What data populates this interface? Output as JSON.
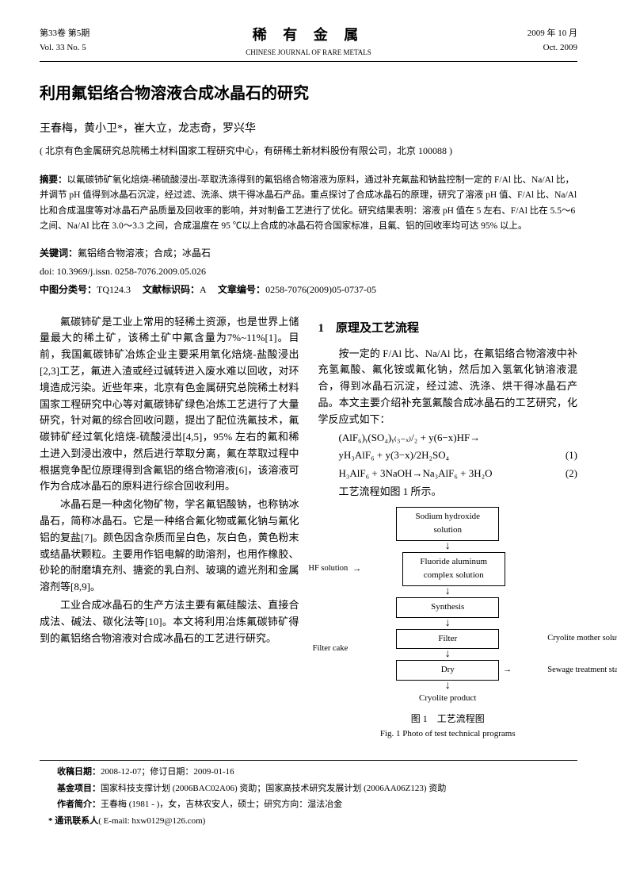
{
  "header": {
    "volume_cn": "第33卷 第5期",
    "volume_en": "Vol. 33  No. 5",
    "journal_cn": "稀 有 金 属",
    "journal_en": "CHINESE JOURNAL OF RARE METALS",
    "date_cn": "2009 年 10 月",
    "date_en": "Oct. 2009"
  },
  "title": "利用氟铝络合物溶液合成冰晶石的研究",
  "authors": "王春梅，黄小卫*，崔大立，龙志奇，罗兴华",
  "affiliation": "( 北京有色金属研究总院稀土材料国家工程研究中心，有研稀土新材料股份有限公司，北京 100088 )",
  "abstract_label": "摘要：",
  "abstract": "以氟碳铈矿氧化焙烧-稀硫酸浸出-萃取洗涤得到的氟铝络合物溶液为原料，通过补充氟盐和钠盐控制一定的 F/Al 比、Na/Al 比，并调节 pH 值得到冰晶石沉淀，经过滤、洗涤、烘干得冰晶石产品。重点探讨了合成冰晶石的原理，研究了溶液 pH 值、F/Al 比、Na/Al 比和合成温度等对冰晶石产品质量及回收率的影响，并对制备工艺进行了优化。研究结果表明：溶液 pH 值在 5 左右、F/Al 比在 5.5～6 之间、Na/Al 比在 3.0～3.3 之间，合成温度在 95 ℃以上合成的冰晶石符合国家标准，且氟、铝的回收率均可达 95% 以上。",
  "keywords_label": "关键词：",
  "keywords": "氟铝络合物溶液；合成；冰晶石",
  "doi": "doi: 10.3969/j.issn. 0258-7076.2009.05.026",
  "class": {
    "clc_label": "中图分类号：",
    "clc": "TQ124.3",
    "doc_label": "文献标识码：",
    "doc": "A",
    "art_label": "文章编号：",
    "art": "0258-7076(2009)05-0737-05"
  },
  "body": {
    "p1": "氟碳铈矿是工业上常用的轻稀土资源，也是世界上储量最大的稀土矿，该稀土矿中氟含量为7%~11%[1]。目前，我国氟碳铈矿冶炼企业主要采用氧化焙烧-盐酸浸出[2,3]工艺，氟进入渣或经过碱转进入废水难以回收，对环境造成污染。近些年来，北京有色金属研究总院稀土材料国家工程研究中心等对氟碳铈矿绿色冶炼工艺进行了大量研究，针对氟的综合回收问题，提出了配位洗氟技术，氟碳铈矿经过氧化焙烧-硫酸浸出[4,5]，95% 左右的氟和稀土进入到浸出液中，然后进行萃取分离，氟在萃取过程中根据竞争配位原理得到含氟铝的络合物溶液[6]，该溶液可作为合成冰晶石的原料进行综合回收利用。",
    "p2": "冰晶石是一种卤化物矿物，学名氟铝酸钠，也称钠冰晶石，简称冰晶石。它是一种络合氟化物或氟化钠与氟化铝的复盐[7]。颜色因含杂质而呈白色，灰白色，黄色粉末或结晶状颗粒。主要用作铝电解的助溶剂，也用作橡胶、砂轮的耐磨填充剂、搪瓷的乳白剂、玻璃的遮光剂和金属溶剂等[8,9]。",
    "p3": "工业合成冰晶石的生产方法主要有氟硅酸法、直接合成法、碱法、碳化法等[10]。本文将利用冶炼氟碳铈矿得到的氟铝络合物溶液对合成冰晶石的工艺进行研究。"
  },
  "sec1": {
    "title": "1　原理及工艺流程",
    "p1": "按一定的 F/Al 比、Na/Al 比，在氟铝络合物溶液中补充氢氟酸、氟化铵或氟化钠，然后加入氢氧化钠溶液混合，得到冰晶石沉淀，经过滤、洗涤、烘干得冰晶石产品。本文主要介绍补充氢氟酸合成冰晶石的工艺研究，化学反应式如下：",
    "eq0": "(AlF₆)ᵧ(SO₄)ᵧ₍₃₋ₓ₎/₂ + y(6−x)HF→",
    "eq1": "yH₃AlF₆ + y(3−x)/2H₂SO₄",
    "eq1n": "(1)",
    "eq2": "H₃AlF₆ + 3NaOH→Na₃AlF₆ + 3H₂O",
    "eq2n": "(2)",
    "p2": "工艺流程如图 1 所示。"
  },
  "flowchart": {
    "nodes": [
      {
        "id": "n1",
        "label": "Sodium hydroxide\nsolution"
      },
      {
        "id": "n2",
        "label": "Fluoride aluminum\ncomplex solution",
        "left": "HF solution"
      },
      {
        "id": "n3",
        "label": "Synthesis"
      },
      {
        "id": "n4",
        "label": "Filter",
        "right": "Cryolite mother\nsolution",
        "left": "Filter cake"
      },
      {
        "id": "n5",
        "label": "Dry",
        "right": "Sewage treatment\nstation"
      },
      {
        "id": "n6",
        "label": "Cryolite product",
        "border": false
      }
    ],
    "caption_cn": "图 1　工艺流程图",
    "caption_en": "Fig. 1  Photo of test technical programs"
  },
  "footer": {
    "recv_label": "收稿日期：",
    "recv": "2008-12-07；修订日期：2009-01-16",
    "fund_label": "基金项目：",
    "fund": "国家科技支撑计划 (2006BAC02A06) 资助；国家高技术研究发展计划 (2006AA06Z123) 资助",
    "author_label": "作者简介：",
    "author": "王春梅 (1981 - )，女，吉林农安人，硕士；研究方向：湿法冶金",
    "corr_label": "* 通讯联系人",
    "corr": "( E-mail: hxw0129@126.com)"
  }
}
